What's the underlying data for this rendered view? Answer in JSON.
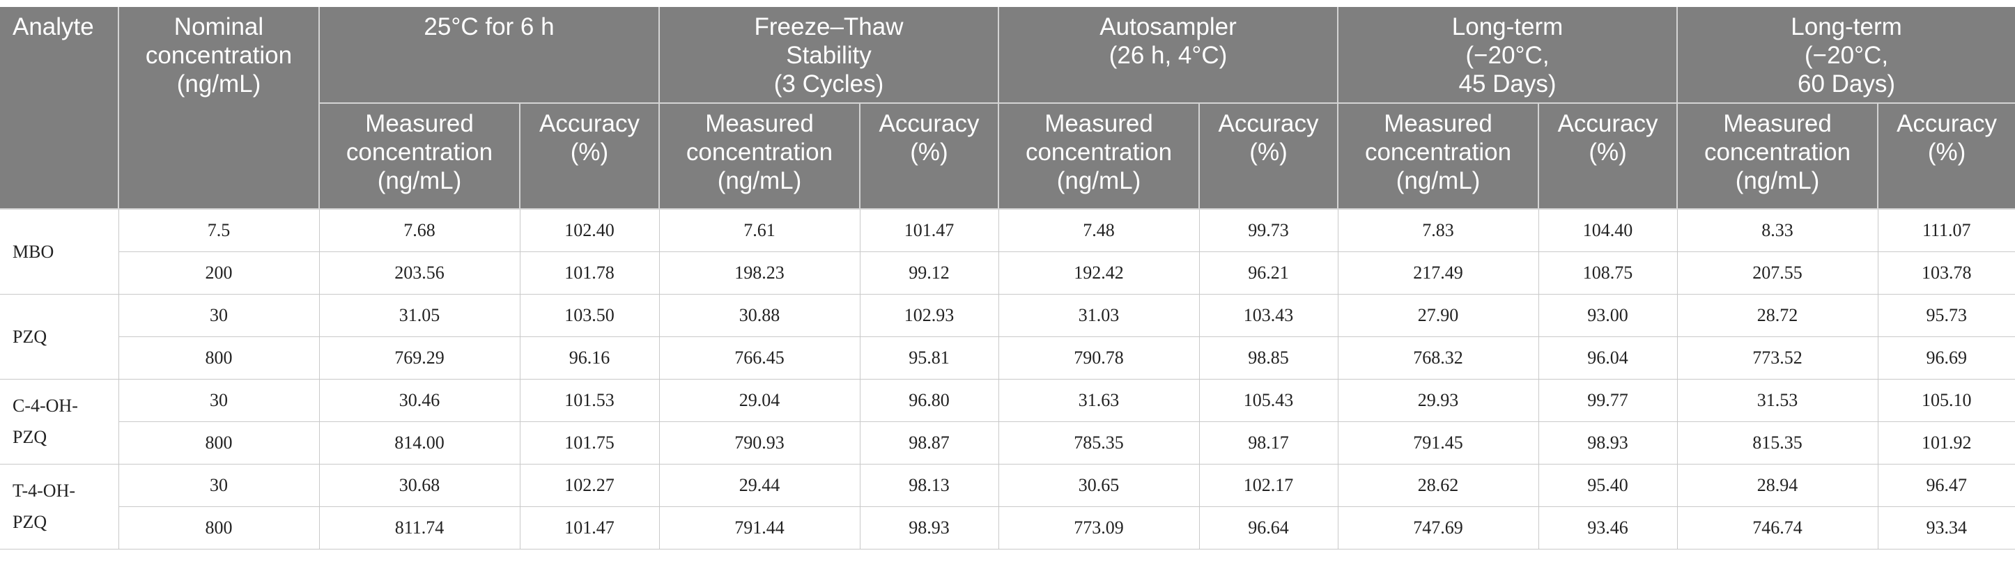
{
  "table": {
    "headers": {
      "analyte": "Analyte",
      "nominal": "Nominal\nconcentration\n(ng/mL)",
      "groups": [
        "25°C for 6 h",
        "Freeze–Thaw\nStability\n(3 Cycles)",
        "Autosampler\n(26 h, 4°C)",
        "Long-term\n(−20°C,\n45 Days)",
        "Long-term\n(−20°C,\n60 Days)"
      ],
      "measured": "Measured\nconcentration\n(ng/mL)",
      "accuracy": "Accuracy\n(%)"
    },
    "analytes": [
      {
        "name": "MBO",
        "rows": [
          {
            "nominal": "7.5",
            "values": [
              "7.68",
              "102.40",
              "7.61",
              "101.47",
              "7.48",
              "99.73",
              "7.83",
              "104.40",
              "8.33",
              "111.07"
            ]
          },
          {
            "nominal": "200",
            "values": [
              "203.56",
              "101.78",
              "198.23",
              "99.12",
              "192.42",
              "96.21",
              "217.49",
              "108.75",
              "207.55",
              "103.78"
            ]
          }
        ]
      },
      {
        "name": "PZQ",
        "rows": [
          {
            "nominal": "30",
            "values": [
              "31.05",
              "103.50",
              "30.88",
              "102.93",
              "31.03",
              "103.43",
              "27.90",
              "93.00",
              "28.72",
              "95.73"
            ]
          },
          {
            "nominal": "800",
            "values": [
              "769.29",
              "96.16",
              "766.45",
              "95.81",
              "790.78",
              "98.85",
              "768.32",
              "96.04",
              "773.52",
              "96.69"
            ]
          }
        ]
      },
      {
        "name": "C-4-OH-\nPZQ",
        "rows": [
          {
            "nominal": "30",
            "values": [
              "30.46",
              "101.53",
              "29.04",
              "96.80",
              "31.63",
              "105.43",
              "29.93",
              "99.77",
              "31.53",
              "105.10"
            ]
          },
          {
            "nominal": "800",
            "values": [
              "814.00",
              "101.75",
              "790.93",
              "98.87",
              "785.35",
              "98.17",
              "791.45",
              "98.93",
              "815.35",
              "101.92"
            ]
          }
        ]
      },
      {
        "name": "T-4-OH-\nPZQ",
        "rows": [
          {
            "nominal": "30",
            "values": [
              "30.68",
              "102.27",
              "29.44",
              "98.13",
              "30.65",
              "102.17",
              "28.62",
              "95.40",
              "28.94",
              "96.47"
            ]
          },
          {
            "nominal": "800",
            "values": [
              "811.74",
              "101.47",
              "791.44",
              "98.93",
              "773.09",
              "96.64",
              "747.69",
              "93.46",
              "746.74",
              "93.34"
            ]
          }
        ]
      }
    ]
  }
}
